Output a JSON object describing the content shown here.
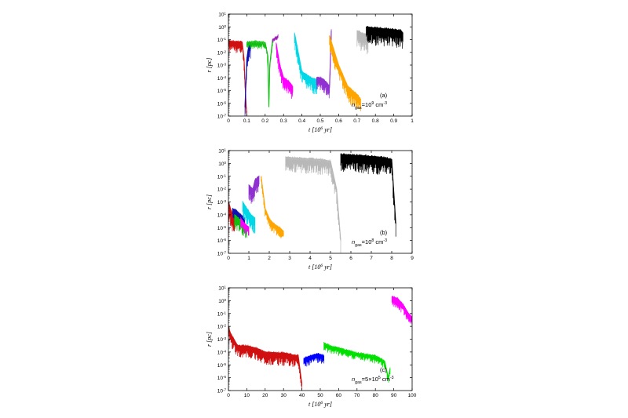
{
  "chart_data": [
    {
      "type": "line",
      "panel_label": "(a)",
      "annotation": {
        "prefix": "n",
        "sub": "gas",
        "eq": "=10",
        "sup": "9",
        "unit": " cm",
        "unit_sup": "-3"
      },
      "xlabel": "t",
      "xunit": "[10",
      "xunit_sup": "6",
      "xunit_tail": " yr]",
      "ylabel": "r",
      "yunit": "[pc]",
      "xlim": [
        0,
        1
      ],
      "xticks": [
        0,
        0.1,
        0.2,
        0.3,
        0.4,
        0.5,
        0.6,
        0.7,
        0.8,
        0.9,
        1
      ],
      "xtick_labels": [
        "0",
        "0.1",
        "0.2",
        "0.3",
        "0.4",
        "0.5",
        "0.6",
        "0.7",
        "0.8",
        "0.9",
        "1"
      ],
      "yscale": "log",
      "ylim_exp": [
        -7,
        1
      ],
      "yticks_exp": [
        -7,
        -6,
        -5,
        -4,
        -3,
        -2,
        -1,
        0,
        1
      ],
      "series": [
        {
          "color": "#d01010",
          "x": [
            0.0,
            0.02,
            0.05,
            0.075,
            0.085,
            0.092,
            0.098,
            0.1
          ],
          "y": [
            0.08,
            0.07,
            0.07,
            0.06,
            0.003,
            1e-05,
            3e-07,
            2e-07
          ],
          "amp": 0.9,
          "n": 40
        },
        {
          "color": "#1010b0",
          "x": [
            0.09,
            0.1,
            0.11,
            0.12
          ],
          "y": [
            5e-07,
            0.003,
            0.03,
            0.05
          ],
          "amp": 1.2,
          "n": 25
        },
        {
          "color": "#10c010",
          "x": [
            0.1,
            0.15,
            0.2,
            0.215,
            0.22,
            0.225,
            0.24
          ],
          "y": [
            0.06,
            0.07,
            0.06,
            0.005,
            5e-07,
            0.001,
            0.1
          ],
          "amp": 0.6,
          "n": 30
        },
        {
          "color": "#a020c0",
          "x": [
            0.24,
            0.26,
            0.27
          ],
          "y": [
            0.1,
            0.15,
            0.2
          ],
          "amp": 0.3,
          "n": 10
        },
        {
          "color": "#ff00ff",
          "x": [
            0.26,
            0.28,
            0.3,
            0.33,
            0.35
          ],
          "y": [
            0.05,
            0.001,
            0.0001,
            5e-05,
            2e-05
          ],
          "amp": 1.1,
          "n": 45
        },
        {
          "color": "#00d8e8",
          "x": [
            0.36,
            0.38,
            0.4,
            0.45,
            0.48
          ],
          "y": [
            0.3,
            0.01,
            0.0003,
            0.0001,
            7e-05
          ],
          "amp": 1.2,
          "n": 45
        },
        {
          "color": "#9030d0",
          "x": [
            0.48,
            0.5,
            0.53,
            0.55,
            0.56
          ],
          "y": [
            0.0001,
            0.0001,
            5e-05,
            2e-05,
            0.5
          ],
          "amp": 1.0,
          "n": 40
        },
        {
          "color": "#ffa500",
          "x": [
            0.55,
            0.6,
            0.65,
            0.7,
            0.72
          ],
          "y": [
            0.2,
            0.001,
            2e-05,
            5e-06,
            2e-06
          ],
          "amp": 1.3,
          "n": 55
        },
        {
          "color": "#b8b8b8",
          "x": [
            0.7,
            0.73,
            0.76
          ],
          "y": [
            0.5,
            0.3,
            0.2
          ],
          "amp": 1.5,
          "n": 25
        },
        {
          "color": "#000000",
          "x": [
            0.75,
            0.8,
            0.85,
            0.9,
            0.94,
            0.95
          ],
          "y": [
            1.0,
            0.8,
            0.7,
            0.6,
            0.5,
            0.3
          ],
          "amp": 1.4,
          "n": 70
        }
      ]
    },
    {
      "type": "line",
      "panel_label": "(b)",
      "annotation": {
        "prefix": "n",
        "sub": "gas",
        "eq": "=10",
        "sup": "8",
        "unit": " cm",
        "unit_sup": "-3"
      },
      "xlabel": "t",
      "xunit": "[10",
      "xunit_sup": "6",
      "xunit_tail": " yr]",
      "ylabel": "r",
      "yunit": "[pc]",
      "xlim": [
        0,
        9
      ],
      "xticks": [
        0,
        1,
        2,
        3,
        4,
        5,
        6,
        7,
        8,
        9
      ],
      "xtick_labels": [
        "0",
        "1",
        "2",
        "3",
        "4",
        "5",
        "6",
        "7",
        "8",
        "9"
      ],
      "yscale": "log",
      "ylim_exp": [
        -7,
        1
      ],
      "yticks_exp": [
        -7,
        -6,
        -5,
        -4,
        -3,
        -2,
        -1,
        0,
        1
      ],
      "series": [
        {
          "color": "#d01010",
          "x": [
            0.0,
            0.1,
            0.2,
            0.3
          ],
          "y": [
            0.001,
            0.0003,
            0.0001,
            5e-05
          ],
          "amp": 1.5,
          "n": 25
        },
        {
          "color": "#1010b0",
          "x": [
            0.2,
            0.4,
            0.6,
            0.8
          ],
          "y": [
            0.0003,
            0.0002,
            0.0001,
            5e-05
          ],
          "amp": 0.9,
          "n": 25
        },
        {
          "color": "#10c010",
          "x": [
            0.3,
            0.5,
            0.7,
            0.9
          ],
          "y": [
            0.0001,
            5e-05,
            3e-05,
            1e-05
          ],
          "amp": 1.2,
          "n": 25
        },
        {
          "color": "#00d8e8",
          "x": [
            0.7,
            0.9,
            1.1,
            1.3
          ],
          "y": [
            0.001,
            0.0003,
            0.0001,
            5e-05
          ],
          "amp": 1.3,
          "n": 25
        },
        {
          "color": "#ff00ff",
          "x": [
            0.6,
            0.8,
            1.0
          ],
          "y": [
            5e-05,
            2e-05,
            1e-05
          ],
          "amp": 0.8,
          "n": 15
        },
        {
          "color": "#9030d0",
          "x": [
            1.0,
            1.2,
            1.3,
            1.5
          ],
          "y": [
            0.02,
            0.01,
            0.05,
            0.1
          ],
          "amp": 1.3,
          "n": 30
        },
        {
          "color": "#ffa500",
          "x": [
            1.6,
            1.8,
            2.0,
            2.2,
            2.5,
            2.7
          ],
          "y": [
            0.1,
            0.0003,
            5e-05,
            2e-05,
            1e-05,
            5e-06
          ],
          "amp": 0.8,
          "n": 35
        },
        {
          "color": "#b8b8b8",
          "x": [
            2.8,
            3.5,
            4.5,
            5.0,
            5.3,
            5.5
          ],
          "y": [
            3.0,
            2.5,
            2.0,
            1.5,
            0.01,
            1e-06
          ],
          "amp": 1.2,
          "n": 80
        },
        {
          "color": "#000000",
          "x": [
            5.5,
            6.5,
            7.5,
            8.0,
            8.2
          ],
          "y": [
            5.0,
            4.0,
            3.0,
            2.0,
            2e-05
          ],
          "amp": 1.4,
          "n": 100
        }
      ]
    },
    {
      "type": "line",
      "panel_label": "(c)",
      "annotation": {
        "prefix": "n",
        "sub": "gas",
        "eq": "=5×10",
        "sup": "5",
        "unit": " cm",
        "unit_sup": "-3"
      },
      "xlabel": "t",
      "xunit": "[10",
      "xunit_sup": "6",
      "xunit_tail": " yr]",
      "ylabel": "r",
      "yunit": "[pc]",
      "xlim": [
        0,
        100
      ],
      "xticks": [
        0,
        10,
        20,
        30,
        40,
        50,
        60,
        70,
        80,
        90,
        100
      ],
      "xtick_labels": [
        "0",
        "10",
        "20",
        "30",
        "40",
        "50",
        "60",
        "70",
        "80",
        "90",
        "100"
      ],
      "yscale": "log",
      "ylim_exp": [
        -7,
        1
      ],
      "yticks_exp": [
        -7,
        -6,
        -5,
        -4,
        -3,
        -2,
        -1,
        0,
        1
      ],
      "series": [
        {
          "color": "#d01010",
          "x": [
            0,
            1,
            3,
            5,
            10,
            15,
            20,
            30,
            38,
            40
          ],
          "y": [
            0.01,
            0.003,
            0.001,
            0.0003,
            0.0003,
            0.0002,
            0.0001,
            8e-05,
            5e-05,
            3e-07
          ],
          "amp": 1.0,
          "n": 120
        },
        {
          "color": "#0000ff",
          "x": [
            41,
            45,
            48,
            52
          ],
          "y": [
            3e-05,
            5e-05,
            7e-05,
            5e-05
          ],
          "amp": 0.7,
          "n": 40
        },
        {
          "color": "#00e000",
          "x": [
            52,
            55,
            60,
            70,
            80,
            85,
            87,
            88
          ],
          "y": [
            0.0005,
            0.0003,
            0.0002,
            8e-05,
            5e-05,
            2e-05,
            1e-06,
            5e-06
          ],
          "amp": 0.6,
          "n": 90
        },
        {
          "color": "#ff00ff",
          "x": [
            89,
            92,
            95,
            98,
            100
          ],
          "y": [
            2.0,
            1.5,
            0.5,
            0.1,
            0.05
          ],
          "amp": 0.8,
          "n": 40
        }
      ]
    }
  ]
}
